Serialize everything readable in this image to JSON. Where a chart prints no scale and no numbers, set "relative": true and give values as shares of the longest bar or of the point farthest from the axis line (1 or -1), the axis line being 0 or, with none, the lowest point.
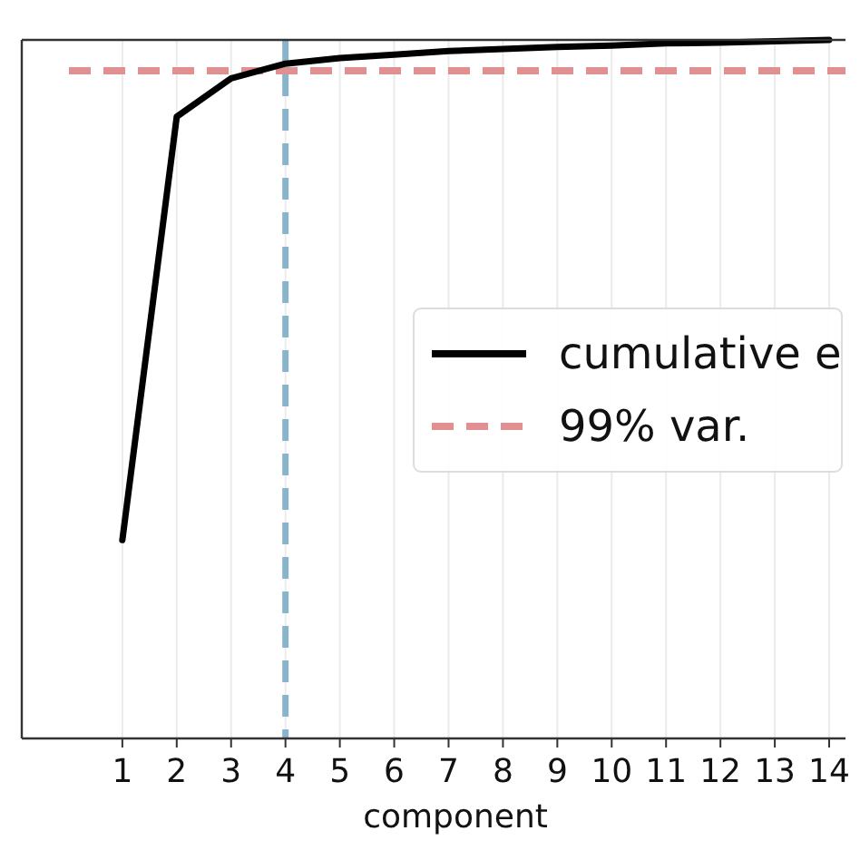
{
  "chart_data": {
    "type": "line",
    "relative": true,
    "xlabel": "component",
    "x": [
      1,
      2,
      3,
      4,
      5,
      6,
      7,
      8,
      9,
      10,
      11,
      12,
      13,
      14
    ],
    "series": [
      {
        "name": "cumulative e",
        "color": "#000000",
        "values": [
          0.284,
          0.89,
          0.945,
          0.966,
          0.974,
          0.979,
          0.984,
          0.987,
          0.99,
          0.992,
          0.995,
          0.996,
          0.998,
          1
        ]
      }
    ],
    "xlim": [
      -0.85,
      14.3
    ],
    "xticks": [
      1,
      2,
      3,
      4,
      5,
      6,
      7,
      8,
      9,
      10,
      11,
      12,
      13,
      14
    ],
    "ref_lines": [
      {
        "axis": "y",
        "value": 0.956,
        "label": "99% var.",
        "color": "#e09090",
        "line_style": "dashed"
      },
      {
        "axis": "x",
        "value": 4,
        "color": "#8ab4cc",
        "line_style": "dashed"
      }
    ],
    "grid": "x",
    "legend": "right",
    "marker": "none",
    "line_style": "solid"
  }
}
